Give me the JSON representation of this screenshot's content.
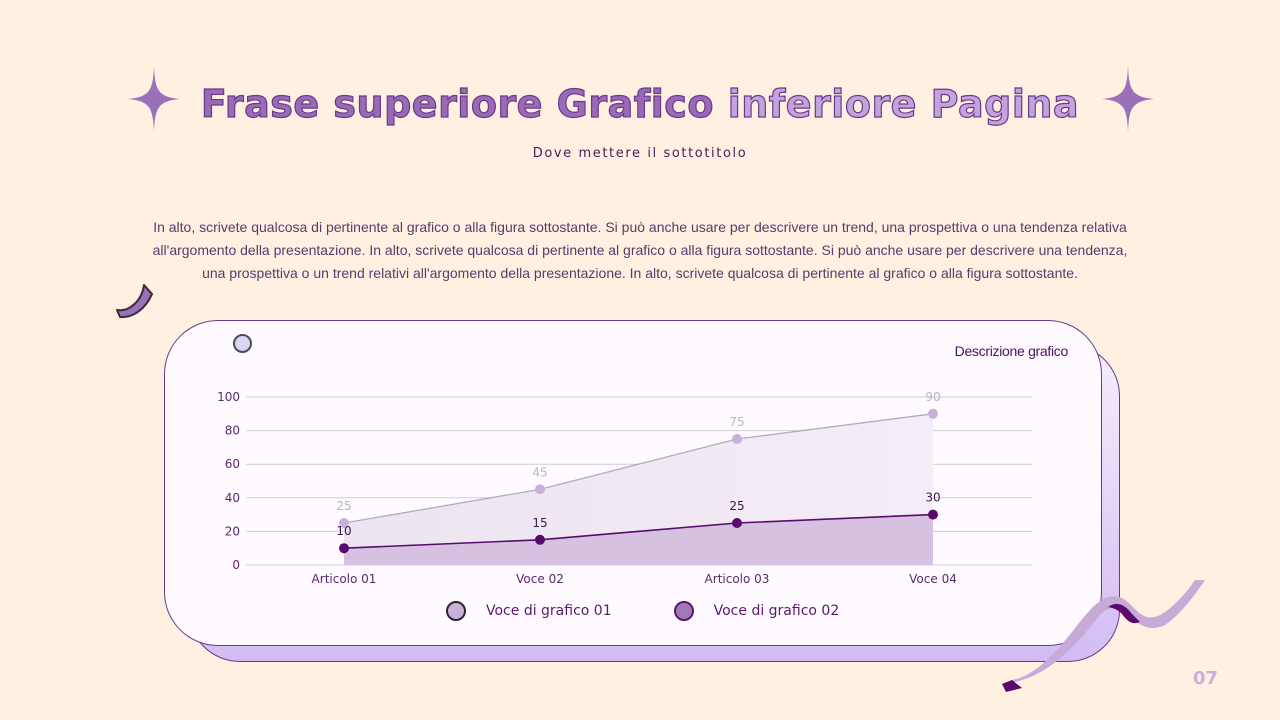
{
  "slide": {
    "title_part1": "Frase superiore Grafico",
    "title_part2": "inferiore Pagina",
    "subtitle": "Dove mettere il sottotitolo",
    "body": "In alto, scrivete qualcosa di pertinente al grafico o alla figura sottostante. Si può anche usare per descrivere un trend, una prospettiva o una tendenza relativa all'argomento della presentazione. In alto, scrivete qualcosa di pertinente al grafico o alla figura sottostante. Si può anche usare per descrivere una tendenza, una prospettiva o un trend relativi all'argomento della presentazione. In alto, scrivete qualcosa di pertinente al grafico o alla figura sottostante.",
    "chart_description": "Descrizione grafico",
    "page_number": "07",
    "icons": [
      "sparkle-icon",
      "moon-icon",
      "pin-icon",
      "ribbon-icon"
    ]
  },
  "colors": {
    "background": "#fff0e2",
    "title_dark": "#9a6ab6",
    "title_light": "#c4a2dc",
    "series1": "#c8b0d8",
    "series2": "#5a0a6e",
    "card_border": "#6a3a8a"
  },
  "chart_data": {
    "type": "area",
    "title": "Descrizione grafico",
    "categories": [
      "Articolo 01",
      "Voce 02",
      "Articolo 03",
      "Voce 04"
    ],
    "series": [
      {
        "name": "Voce di grafico 01",
        "values": [
          25,
          45,
          75,
          90
        ],
        "color": "#c8b0d8"
      },
      {
        "name": "Voce di grafico 02",
        "values": [
          10,
          15,
          25,
          30
        ],
        "color": "#5a0a6e"
      }
    ],
    "yticks": [
      0,
      20,
      40,
      60,
      80,
      100
    ],
    "ylim": [
      0,
      100
    ],
    "xlabel": "",
    "ylabel": "",
    "grid": true,
    "data_labels": true,
    "legend_position": "bottom"
  }
}
